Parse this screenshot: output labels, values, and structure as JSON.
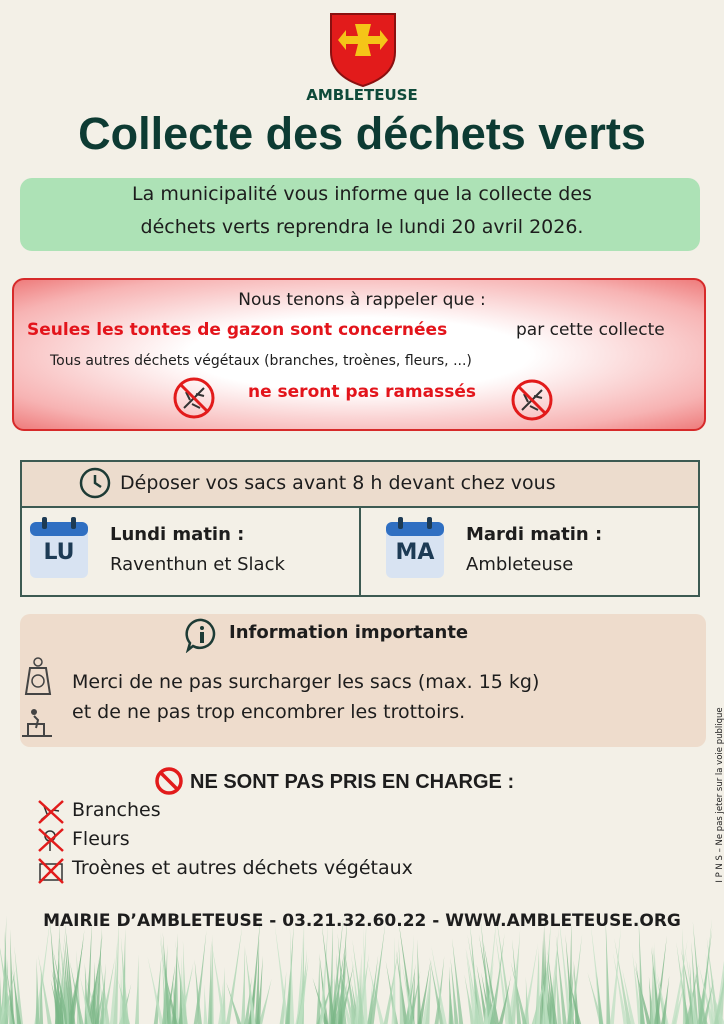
{
  "header": {
    "town": "AMBLETEUSE",
    "title": "Collecte des déchets verts"
  },
  "announcement": {
    "lines": [
      "La municipalité vous informe que la collecte des",
      "déchets verts reprendra le lundi 20 avril 2026."
    ]
  },
  "reminder": {
    "intro": "Nous tenons à rappeler que :",
    "highlight": "Seules les tontes de gazon sont concernées",
    "highlight_rest": "par cette collecte",
    "others": "Tous autres déchets végétaux (branches, troènes, fleurs, ...)",
    "warning": "ne seront pas ramassés"
  },
  "schedule": {
    "heading": "Déposer vos sacs avant 8 h devant chez vous",
    "days": [
      {
        "badge": "LU",
        "label": "Lundi matin :",
        "places": "Raventhun et Slack"
      },
      {
        "badge": "MA",
        "label": "Mardi matin :",
        "places": "Ambleteuse"
      }
    ]
  },
  "info": {
    "heading": "Information importante",
    "lines": [
      "Merci de ne pas surcharger les sacs (max. 15 kg)",
      "et de ne pas trop encombrer les trottoirs."
    ]
  },
  "excluded": {
    "heading": "NE SONT PAS PRIS EN CHARGE :",
    "items": [
      "Branches",
      "Fleurs",
      "Troènes et autres déchets végétaux"
    ]
  },
  "footer": "MAIRIE D’AMBLETEUSE - 03.21.32.60.22 - WWW.AMBLETEUSE.ORG",
  "side_note": "I P N S – Ne pas jeter sur la voie publique"
}
